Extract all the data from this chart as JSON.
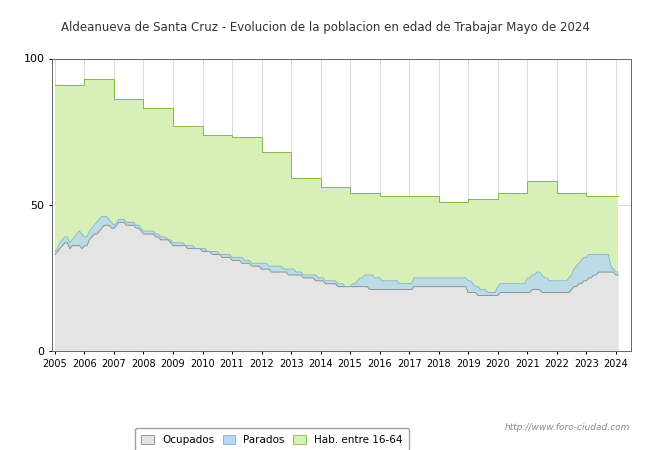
{
  "title": "Aldeanueva de Santa Cruz - Evolucion de la poblacion en edad de Trabajar Mayo de 2024",
  "title_color": "#333333",
  "ylim": [
    0,
    100
  ],
  "yticks": [
    0,
    50,
    100
  ],
  "start_year": 2005,
  "watermark": "http://www.foro-ciudad.com",
  "legend_labels": [
    "Ocupados",
    "Parados",
    "Hab. entre 16-64"
  ],
  "hab_16_64": [
    91,
    91,
    91,
    91,
    91,
    91,
    91,
    91,
    91,
    91,
    91,
    91,
    93,
    93,
    93,
    93,
    93,
    93,
    93,
    93,
    93,
    93,
    93,
    93,
    86,
    86,
    86,
    86,
    86,
    86,
    86,
    86,
    86,
    86,
    86,
    86,
    83,
    83,
    83,
    83,
    83,
    83,
    83,
    83,
    83,
    83,
    83,
    83,
    77,
    77,
    77,
    77,
    77,
    77,
    77,
    77,
    77,
    77,
    77,
    77,
    74,
    74,
    74,
    74,
    74,
    74,
    74,
    74,
    74,
    74,
    74,
    74,
    73,
    73,
    73,
    73,
    73,
    73,
    73,
    73,
    73,
    73,
    73,
    73,
    68,
    68,
    68,
    68,
    68,
    68,
    68,
    68,
    68,
    68,
    68,
    68,
    59,
    59,
    59,
    59,
    59,
    59,
    59,
    59,
    59,
    59,
    59,
    59,
    56,
    56,
    56,
    56,
    56,
    56,
    56,
    56,
    56,
    56,
    56,
    56,
    54,
    54,
    54,
    54,
    54,
    54,
    54,
    54,
    54,
    54,
    54,
    54,
    53,
    53,
    53,
    53,
    53,
    53,
    53,
    53,
    53,
    53,
    53,
    53,
    53,
    53,
    53,
    53,
    53,
    53,
    53,
    53,
    53,
    53,
    53,
    53,
    51,
    51,
    51,
    51,
    51,
    51,
    51,
    51,
    51,
    51,
    51,
    51,
    52,
    52,
    52,
    52,
    52,
    52,
    52,
    52,
    52,
    52,
    52,
    52,
    54,
    54,
    54,
    54,
    54,
    54,
    54,
    54,
    54,
    54,
    54,
    54,
    58,
    58,
    58,
    58,
    58,
    58,
    58,
    58,
    58,
    58,
    58,
    58,
    54,
    54,
    54,
    54,
    54,
    54,
    54,
    54,
    54,
    54,
    54,
    54,
    53,
    53,
    53,
    53,
    53,
    53,
    53,
    53,
    53,
    53,
    53,
    53,
    53,
    53
  ],
  "afiliados": [
    33,
    34,
    35,
    36,
    37,
    37,
    35,
    36,
    36,
    36,
    36,
    35,
    36,
    36,
    38,
    39,
    40,
    40,
    41,
    42,
    43,
    43,
    43,
    42,
    42,
    43,
    44,
    44,
    44,
    43,
    43,
    43,
    43,
    42,
    42,
    41,
    40,
    40,
    40,
    40,
    40,
    39,
    39,
    38,
    38,
    38,
    38,
    37,
    36,
    36,
    36,
    36,
    36,
    36,
    35,
    35,
    35,
    35,
    35,
    35,
    34,
    34,
    34,
    34,
    33,
    33,
    33,
    33,
    32,
    32,
    32,
    32,
    31,
    31,
    31,
    31,
    30,
    30,
    30,
    30,
    29,
    29,
    29,
    29,
    28,
    28,
    28,
    28,
    27,
    27,
    27,
    27,
    27,
    27,
    27,
    26,
    26,
    26,
    26,
    26,
    26,
    25,
    25,
    25,
    25,
    25,
    24,
    24,
    24,
    24,
    23,
    23,
    23,
    23,
    23,
    22,
    22,
    22,
    22,
    22,
    22,
    22,
    22,
    22,
    22,
    22,
    22,
    22,
    21,
    21,
    21,
    21,
    21,
    21,
    21,
    21,
    21,
    21,
    21,
    21,
    21,
    21,
    21,
    21,
    21,
    21,
    22,
    22,
    22,
    22,
    22,
    22,
    22,
    22,
    22,
    22,
    22,
    22,
    22,
    22,
    22,
    22,
    22,
    22,
    22,
    22,
    22,
    22,
    20,
    20,
    20,
    20,
    19,
    19,
    19,
    19,
    19,
    19,
    19,
    19,
    19,
    20,
    20,
    20,
    20,
    20,
    20,
    20,
    20,
    20,
    20,
    20,
    20,
    20,
    21,
    21,
    21,
    21,
    20,
    20,
    20,
    20,
    20,
    20,
    20,
    20,
    20,
    20,
    20,
    20,
    21,
    22,
    22,
    23,
    23,
    24,
    24,
    25,
    25,
    26,
    26,
    27,
    27,
    27,
    27,
    27,
    27,
    27,
    26,
    26
  ],
  "parados": [
    34,
    35,
    37,
    38,
    39,
    39,
    37,
    38,
    39,
    40,
    41,
    40,
    39,
    39,
    41,
    42,
    43,
    44,
    45,
    46,
    46,
    46,
    45,
    44,
    43,
    44,
    45,
    45,
    45,
    44,
    44,
    44,
    44,
    43,
    43,
    42,
    41,
    41,
    41,
    41,
    41,
    40,
    40,
    39,
    39,
    39,
    38,
    38,
    37,
    37,
    37,
    37,
    37,
    36,
    36,
    36,
    36,
    35,
    35,
    35,
    35,
    35,
    34,
    34,
    34,
    34,
    34,
    33,
    33,
    33,
    33,
    33,
    32,
    32,
    32,
    32,
    32,
    31,
    31,
    31,
    30,
    30,
    30,
    30,
    30,
    30,
    30,
    29,
    29,
    29,
    29,
    29,
    29,
    28,
    28,
    28,
    28,
    28,
    27,
    27,
    27,
    26,
    26,
    26,
    26,
    26,
    26,
    25,
    25,
    25,
    24,
    24,
    24,
    24,
    24,
    23,
    23,
    23,
    22,
    22,
    22,
    23,
    23,
    24,
    25,
    25,
    26,
    26,
    26,
    26,
    25,
    25,
    25,
    24,
    24,
    24,
    24,
    24,
    24,
    24,
    23,
    23,
    23,
    23,
    23,
    23,
    25,
    25,
    25,
    25,
    25,
    25,
    25,
    25,
    25,
    25,
    25,
    25,
    25,
    25,
    25,
    25,
    25,
    25,
    25,
    25,
    25,
    25,
    24,
    24,
    23,
    22,
    22,
    21,
    21,
    21,
    20,
    20,
    20,
    20,
    22,
    23,
    23,
    23,
    23,
    23,
    23,
    23,
    23,
    23,
    23,
    23,
    25,
    25,
    26,
    26,
    27,
    27,
    26,
    25,
    25,
    24,
    24,
    24,
    24,
    24,
    24,
    24,
    24,
    25,
    26,
    28,
    29,
    30,
    31,
    32,
    32,
    33,
    33,
    33,
    33,
    33,
    33,
    33,
    33,
    33,
    29,
    28,
    27,
    27
  ]
}
